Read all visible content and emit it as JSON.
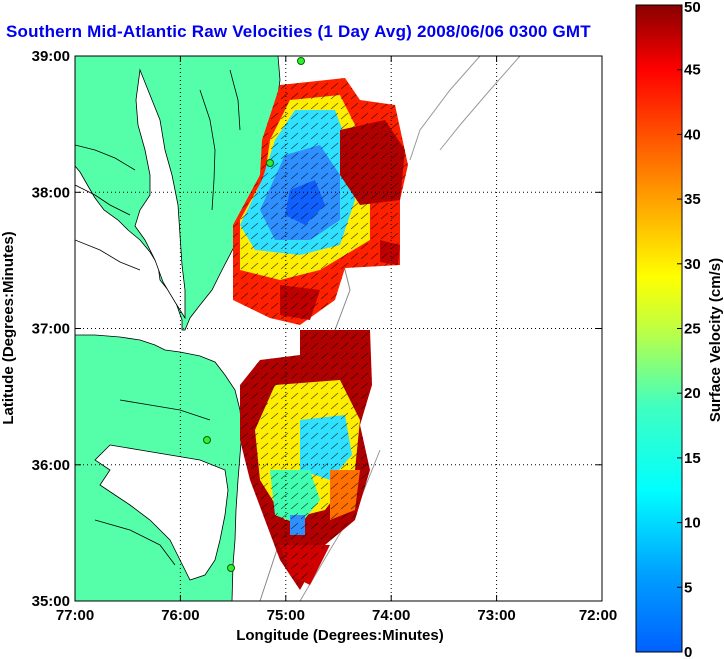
{
  "title": "Southern Mid-Atlantic Raw Velocities (1 Day Avg) 2008/06/06 0300 GMT",
  "map": {
    "xlabel": "Longitude (Degrees:Minutes)",
    "ylabel": "Latitude (Degrees:Minutes)",
    "x_ticks": [
      "77:00",
      "76:00",
      "75:00",
      "74:00",
      "73:00",
      "72:00"
    ],
    "y_ticks": [
      "39:00",
      "38:00",
      "37:00",
      "36:00",
      "35:00"
    ],
    "lon_range": [
      -77,
      -72
    ],
    "lat_range": [
      35,
      39
    ],
    "land_color": "#55ffaa",
    "grid": "dotted"
  },
  "colorbar": {
    "label": "Surface Velocity (cm/s)",
    "ticks": [
      "0",
      "5",
      "10",
      "15",
      "20",
      "25",
      "30",
      "35",
      "40",
      "45",
      "50"
    ],
    "range": [
      0,
      50
    ],
    "colormap": "jet"
  }
}
